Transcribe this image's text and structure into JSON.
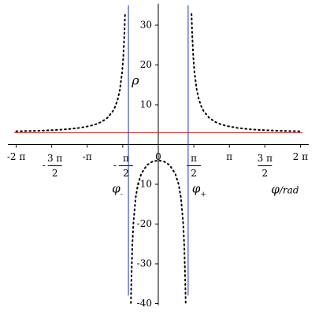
{
  "chart_data": {
    "type": "line",
    "ylabel": "ρ",
    "xlabel": {
      "symbol": "φ",
      "unit": "/rad"
    },
    "asymptote_labels": [
      {
        "symbol": "φ",
        "sub": "-"
      },
      {
        "symbol": "φ",
        "sub": "+"
      }
    ],
    "xlim": [
      -6.65,
      6.65
    ],
    "ylim": [
      -40,
      35
    ],
    "xticks": [
      {
        "value": -6.283,
        "label": "-2 π"
      },
      {
        "value": -4.712,
        "label": "-",
        "numerator": "3 π",
        "denominator": "2"
      },
      {
        "value": -3.1416,
        "label": "-π"
      },
      {
        "value": -1.5708,
        "label": "-",
        "numerator": "π",
        "denominator": "2"
      },
      {
        "value": 0,
        "label": "0"
      },
      {
        "value": 1.5708,
        "numerator": "π",
        "denominator": "2"
      },
      {
        "value": 3.1416,
        "label": "π"
      },
      {
        "value": 4.712,
        "numerator": "3 π",
        "denominator": "2"
      },
      {
        "value": 6.283,
        "label": "2 π"
      }
    ],
    "yticks": [
      -40,
      -30,
      -20,
      -10,
      10,
      20,
      30
    ],
    "curve_color": "#000000",
    "curves": [
      {
        "x": [
          -6.28,
          -5.5,
          -5,
          -4.5,
          -4,
          -3.5,
          -3,
          -2.75,
          -2.5,
          -2.25,
          -2,
          -1.9,
          -1.8,
          -1.7,
          -1.6,
          -1.55,
          -1.5,
          -1.47
        ],
        "values": [
          3.33,
          3.43,
          3.53,
          3.66,
          3.86,
          4.17,
          4.69,
          5.11,
          5.72,
          6.7,
          8.44,
          9.59,
          11.22,
          13.75,
          18.12,
          21.77,
          27.5,
          32.81
        ]
      },
      {
        "x": [
          -1.21,
          -1.2,
          -1.15,
          -1.1,
          -1,
          -0.9,
          -0.75,
          -0.5,
          -0.25,
          0,
          0.25,
          0.5,
          0.75,
          0.9,
          1,
          1.1,
          1.15,
          1.2,
          1.21
        ],
        "values": [
          -39.85,
          -36.52,
          -25.65,
          -19.69,
          -13.33,
          -10.03,
          -7.32,
          -5.17,
          -4.26,
          -4,
          -4.26,
          -5.17,
          -7.32,
          -10.03,
          -13.33,
          -19.69,
          -25.65,
          -36.52,
          -39.85
        ]
      },
      {
        "x": [
          1.47,
          1.5,
          1.55,
          1.6,
          1.7,
          1.8,
          1.9,
          2,
          2.25,
          2.5,
          2.75,
          3,
          3.5,
          4,
          4.5,
          5,
          5.5,
          6.28
        ],
        "values": [
          32.81,
          27.5,
          21.77,
          18.12,
          13.75,
          11.22,
          9.59,
          8.44,
          6.7,
          5.72,
          5.11,
          4.69,
          4.17,
          3.86,
          3.66,
          3.53,
          3.43,
          3.33
        ]
      }
    ],
    "vertical_asymptotes": {
      "x": [
        -1.32,
        1.32
      ],
      "color": "#2233cc",
      "ylim": [
        -38,
        35
      ]
    },
    "horizontal_asymptote": {
      "y": 3,
      "color": "#dd2222"
    }
  }
}
